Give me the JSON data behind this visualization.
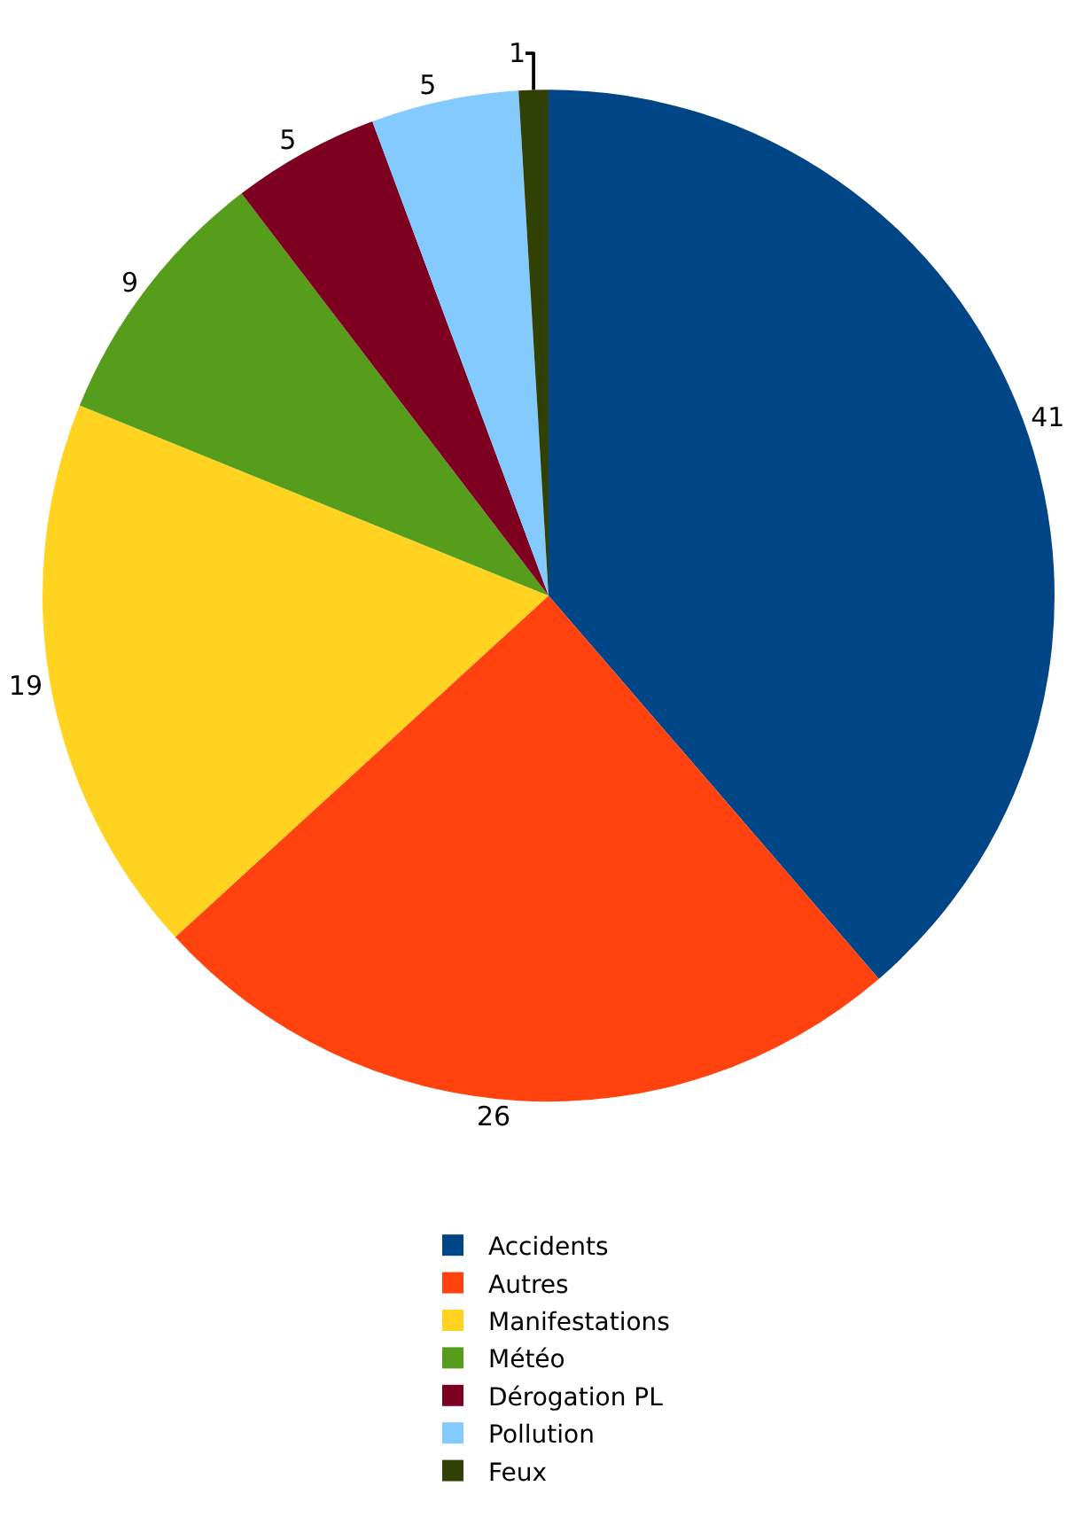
{
  "chart_data": {
    "type": "pie",
    "categories": [
      "Accidents",
      "Autres",
      "Manifestations",
      "Météo",
      "Dérogation PL",
      "Pollution",
      "Feux"
    ],
    "values": [
      41,
      26,
      19,
      9,
      5,
      5,
      1
    ],
    "colors": [
      "#004586",
      "#ff420e",
      "#ffd320",
      "#579d1c",
      "#7e0021",
      "#83caff",
      "#314004"
    ],
    "data_labels": true,
    "legend": "bottom"
  }
}
